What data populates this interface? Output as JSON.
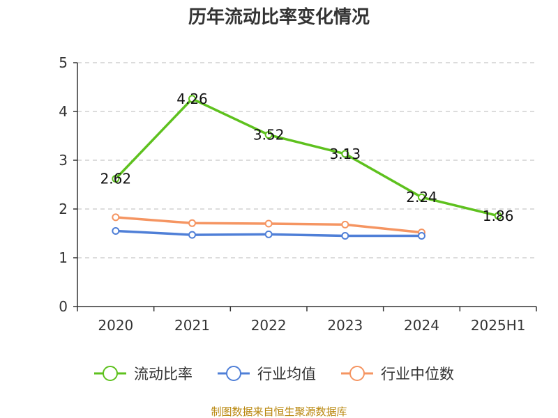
{
  "chart_data": {
    "type": "line",
    "title": "历年流动比率变化情况",
    "categories": [
      "2020",
      "2021",
      "2022",
      "2023",
      "2024",
      "2025H1"
    ],
    "ylim": [
      0,
      5
    ],
    "yticks": [
      "0",
      "1",
      "2",
      "3",
      "4",
      "5"
    ],
    "grid": true,
    "legend_position": "bottom",
    "series": [
      {
        "name": "流动比率",
        "color": "#5ec11e",
        "values": [
          2.62,
          4.26,
          3.52,
          3.13,
          2.24,
          1.86
        ],
        "labels": [
          "2.62",
          "4.26",
          "3.52",
          "3.13",
          "2.24",
          "1.86"
        ]
      },
      {
        "name": "行业均值",
        "color": "#4f7fd7",
        "values": [
          1.55,
          1.47,
          1.48,
          1.45,
          1.45,
          null
        ]
      },
      {
        "name": "行业中位数",
        "color": "#f59562",
        "values": [
          1.83,
          1.71,
          1.7,
          1.68,
          1.52,
          null
        ]
      }
    ],
    "source_note": "制图数据来自恒生聚源数据库"
  }
}
